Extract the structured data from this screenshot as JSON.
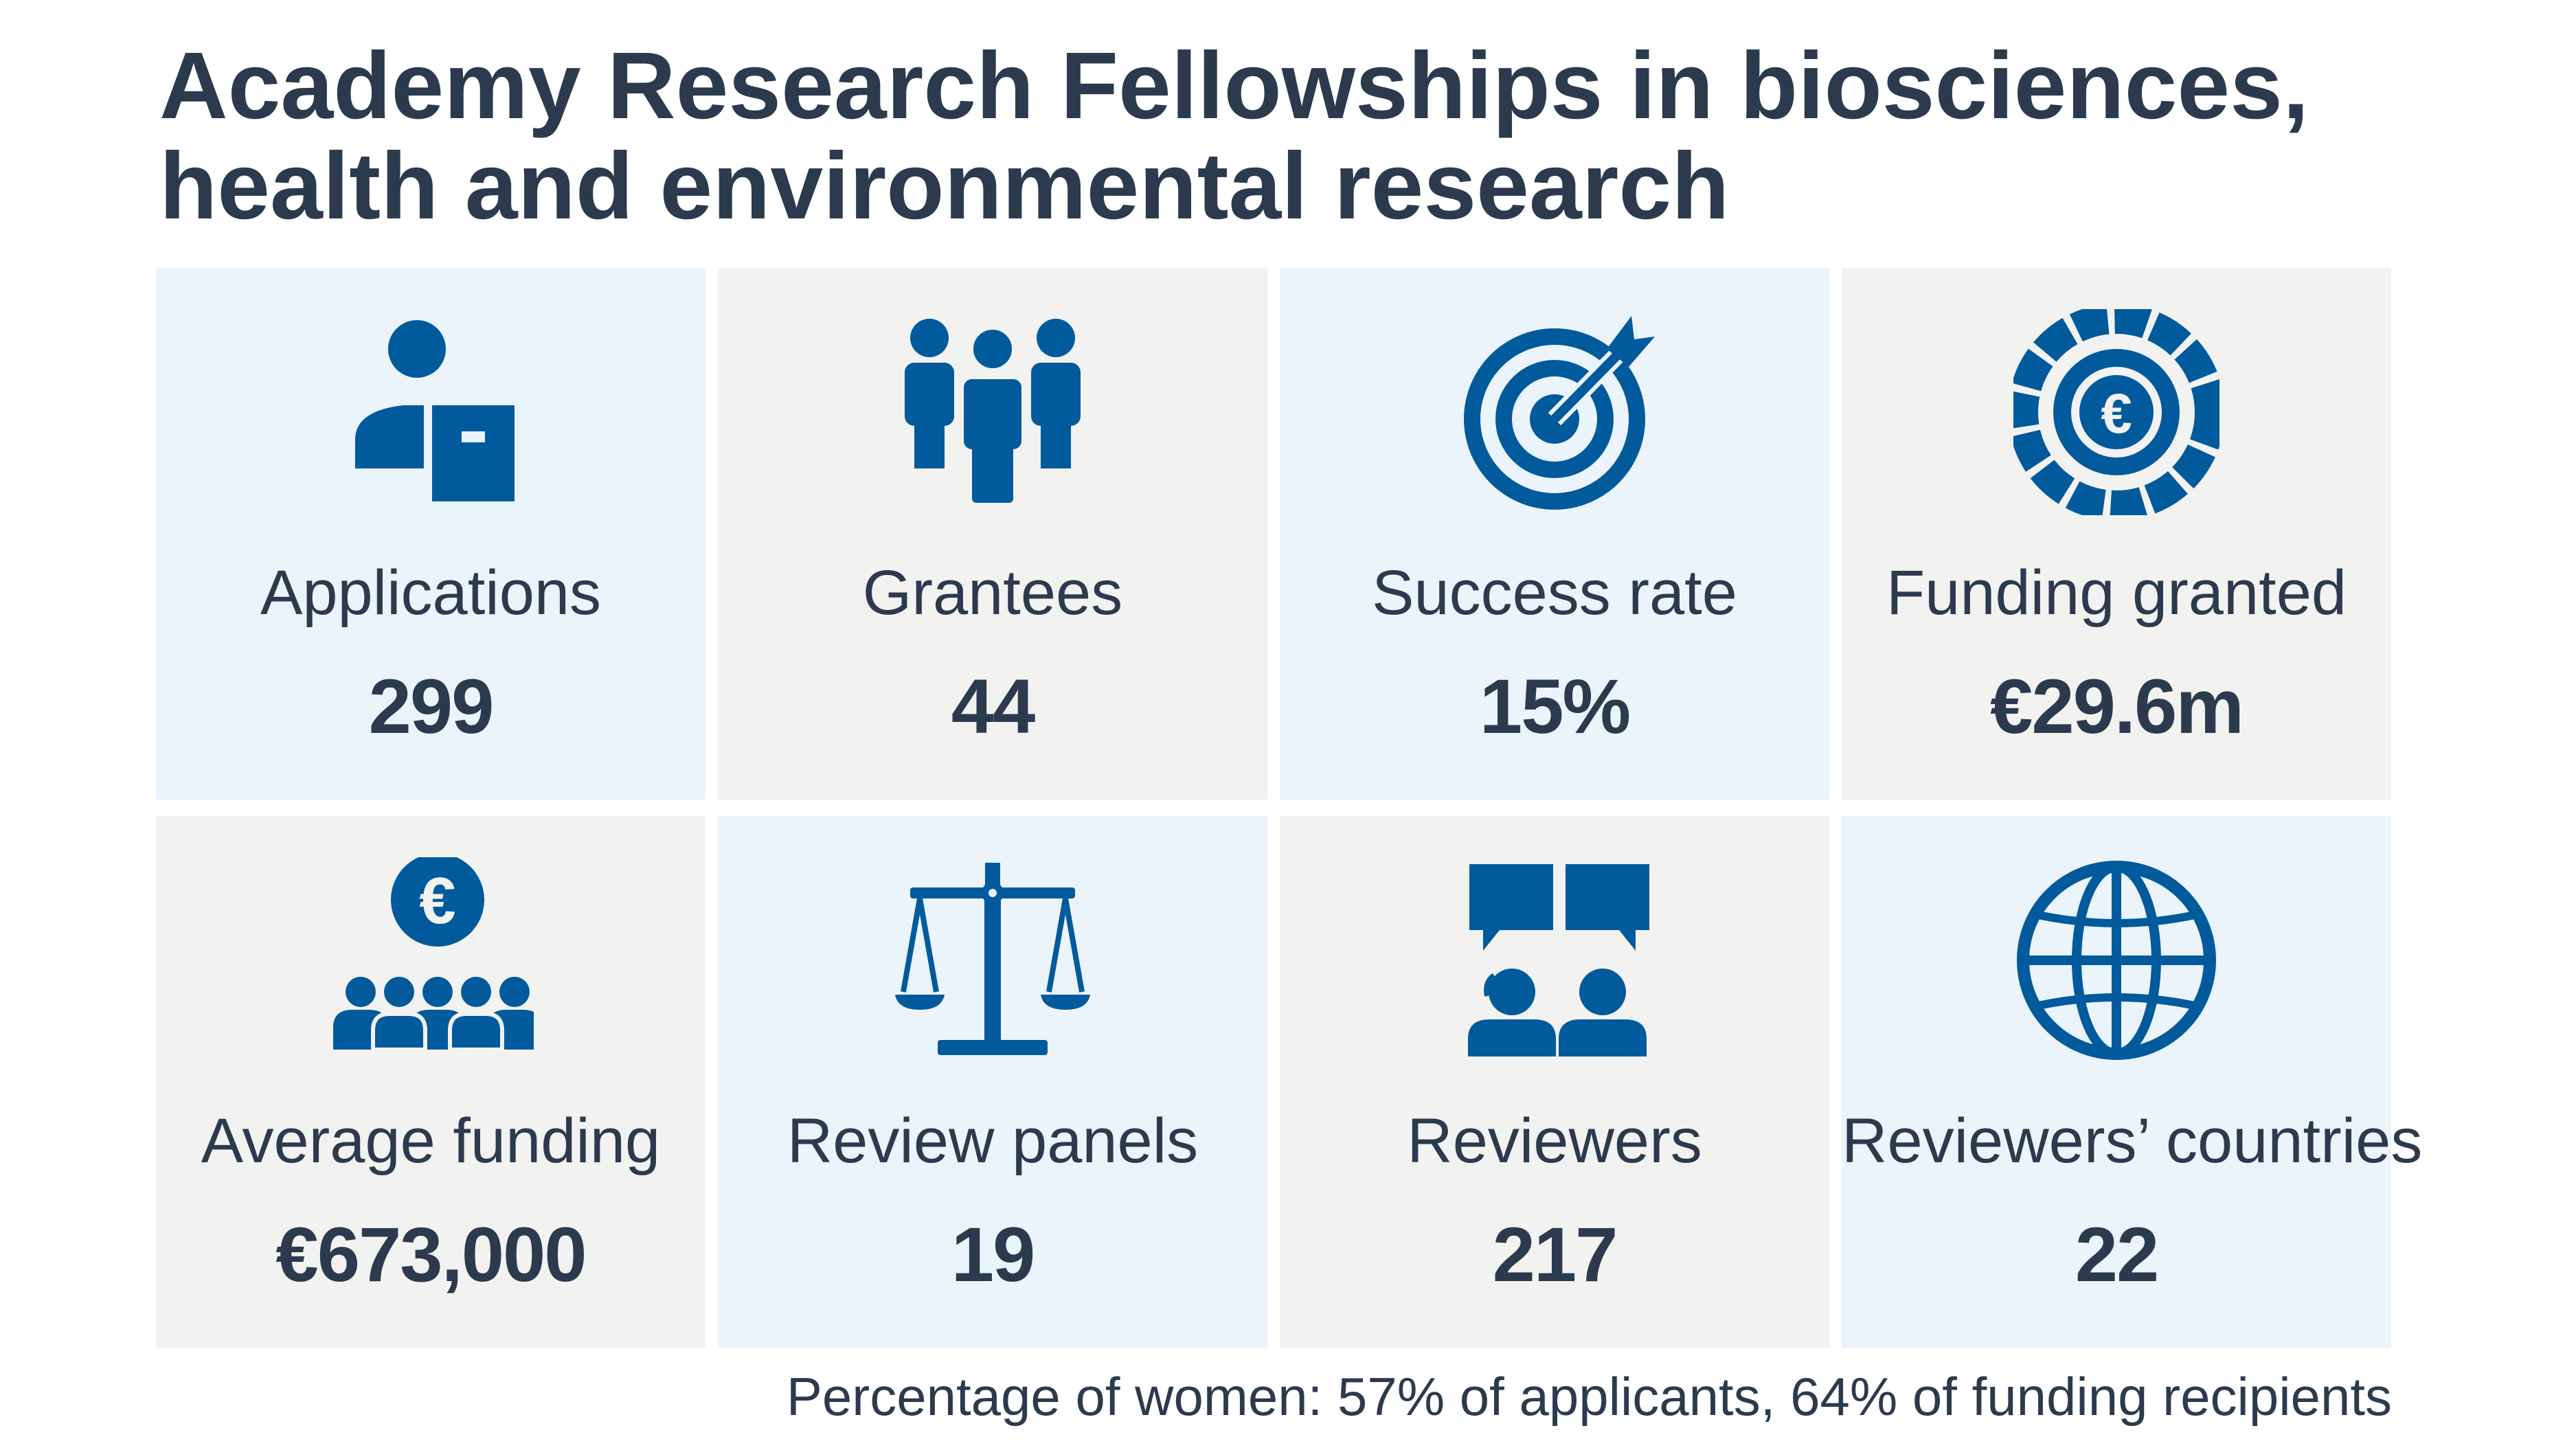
{
  "title": {
    "line1": "Academy Research Fellowships in biosciences,",
    "line2": "health and environmental research"
  },
  "colors": {
    "accent": "#005a9c",
    "text": "#2c3a4e",
    "tile_blue": "#ebf3fb",
    "tile_grey": "#f2f2f1"
  },
  "tiles": [
    {
      "icon": "applicant-icon",
      "label": "Applications",
      "value": "299"
    },
    {
      "icon": "group-icon",
      "label": "Grantees",
      "value": "44"
    },
    {
      "icon": "target-icon",
      "label": "Success rate",
      "value": "15%"
    },
    {
      "icon": "euro-coin-icon",
      "label": "Funding granted",
      "value": "€29.6m"
    },
    {
      "icon": "euro-group-icon",
      "label": "Average funding",
      "value": "€673,000"
    },
    {
      "icon": "scales-icon",
      "label": "Review panels",
      "value": "19"
    },
    {
      "icon": "reviewers-chat-icon",
      "label": "Reviewers",
      "value": "217"
    },
    {
      "icon": "globe-icon",
      "label": "Reviewers’ countries",
      "value": "22"
    }
  ],
  "footnote": {
    "prefix": "Percentage of women: ",
    "applicants_value": "57%",
    "applicants_text": " of applicants, ",
    "recipients_value": "64%",
    "recipients_text": " of funding recipients"
  }
}
